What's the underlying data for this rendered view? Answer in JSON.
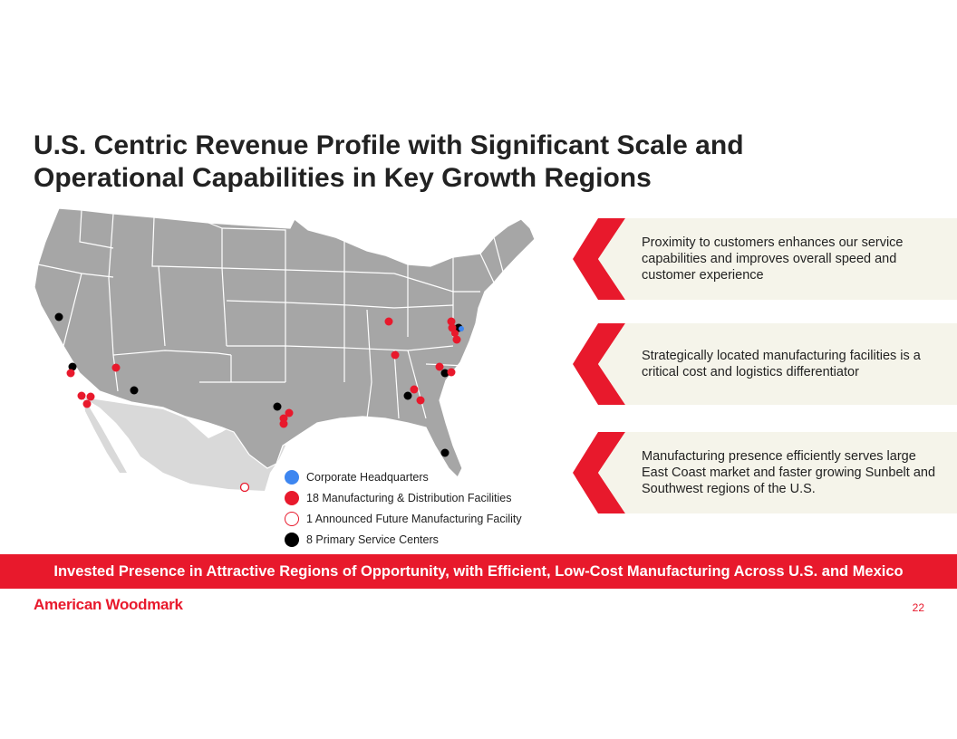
{
  "title": {
    "line1": "U.S. Centric Revenue Profile with Significant Scale and",
    "line2": "Operational Capabilities in Key Growth Regions"
  },
  "legend": {
    "hq": "Corporate Headquarters",
    "manufacturing": "18 Manufacturing & Distribution Facilities",
    "future": "1 Announced Future Manufacturing Facility",
    "service": "8 Primary Service Centers"
  },
  "callouts": [
    {
      "text": "Proximity to customers enhances our service capabilities and improves overall speed and customer experience"
    },
    {
      "text": "Strategically located manufacturing facilities is a critical cost and logistics differentiator"
    },
    {
      "text": "Manufacturing presence efficiently serves large East Coast market and faster growing Sunbelt and Southwest regions of the U.S."
    }
  ],
  "banner": "Invested Presence in Attractive Regions of Opportunity, with Efficient, Low-Cost Manufacturing Across U.S. and Mexico",
  "logo": "American Woodmark",
  "page_number": "22",
  "colors": {
    "accent_red": "#e8192c",
    "hq_blue": "#3d86f0",
    "service_black": "#000000",
    "map_gray": "#a6a6a6",
    "mexico_gray": "#d9d9d9",
    "callout_bg": "#f5f4ea"
  }
}
